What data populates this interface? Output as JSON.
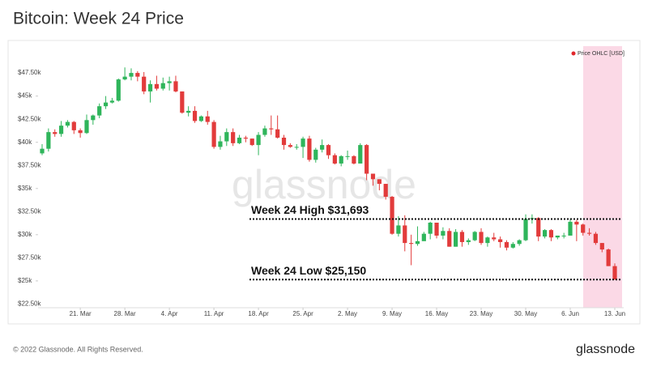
{
  "chart_data": {
    "type": "candlestick",
    "title": "Bitcoin: Week 24 Price",
    "series_name": "Price OHLC [USD]",
    "watermark": "glassnode",
    "footer": "© 2022 Glassnode. All Rights Reserved.",
    "brand": "glassnode",
    "up_color": "#2fb55b",
    "down_color": "#e23b3b",
    "legend_color": "#e0262b",
    "categories": [
      null,
      null,
      null,
      null,
      null,
      null,
      "21. Mar",
      null,
      null,
      null,
      null,
      null,
      null,
      "28. Mar",
      null,
      null,
      null,
      null,
      null,
      null,
      "4. Apr",
      null,
      null,
      null,
      null,
      null,
      null,
      "11. Apr",
      null,
      null,
      null,
      null,
      null,
      null,
      "18. Apr",
      null,
      null,
      null,
      null,
      null,
      null,
      "25. Apr",
      null,
      null,
      null,
      null,
      null,
      null,
      "2. May",
      null,
      null,
      null,
      null,
      null,
      null,
      "9. May",
      null,
      null,
      null,
      null,
      null,
      null,
      "16. May",
      null,
      null,
      null,
      null,
      null,
      null,
      "23. May",
      null,
      null,
      null,
      null,
      null,
      null,
      "30. May",
      null,
      null,
      null,
      null,
      null,
      null,
      "6. Jun",
      null,
      null,
      null,
      null,
      null,
      null,
      "13. Jun"
    ],
    "open": [
      38800,
      39300,
      41100,
      40900,
      41800,
      42200,
      41300,
      41000,
      42400,
      42900,
      43900,
      44300,
      44500,
      46800,
      47100,
      47500,
      47100,
      45500,
      46300,
      45800,
      46400,
      46600,
      45500,
      43200,
      43400,
      42300,
      42800,
      42200,
      39500,
      40100,
      41100,
      39900,
      40500,
      40400,
      39700,
      40800,
      41500,
      41400,
      40500,
      39700,
      39500,
      39500,
      40400,
      38100,
      39200,
      39700,
      38600,
      37700,
      38500,
      38500,
      37700,
      39700,
      36600,
      36000,
      35500,
      34100,
      30100,
      31000,
      29100,
      29000,
      29300,
      30100,
      31300,
      29900,
      30400,
      28700,
      30300,
      29200,
      29400,
      30300,
      29100,
      29700,
      29500,
      29200,
      28600,
      29000,
      29400,
      31700,
      31800,
      29800,
      30500,
      29700,
      29900,
      29900,
      31400,
      31100,
      30200,
      30100,
      29100,
      28400,
      26600
    ],
    "high": [
      39800,
      41500,
      41400,
      42300,
      42400,
      42300,
      41500,
      43000,
      43000,
      44200,
      45000,
      44800,
      46900,
      48100,
      48000,
      47700,
      47600,
      46700,
      47200,
      47000,
      47100,
      47200,
      45500,
      43900,
      43900,
      42900,
      43400,
      42400,
      40700,
      41500,
      41500,
      40800,
      40700,
      40400,
      41100,
      41800,
      42900,
      42900,
      40800,
      39900,
      39800,
      40600,
      40700,
      39400,
      40300,
      39800,
      38800,
      38600,
      39100,
      38600,
      39900,
      39800,
      36600,
      36000,
      35500,
      34200,
      32000,
      32100,
      30000,
      30900,
      30300,
      31400,
      31300,
      30800,
      30700,
      30600,
      30500,
      29600,
      30400,
      30700,
      29800,
      30200,
      29800,
      29400,
      29200,
      29500,
      32200,
      32200,
      31900,
      30600,
      30600,
      29900,
      30200,
      31700,
      31600,
      31200,
      30700,
      30300,
      29100,
      28500,
      26900
    ],
    "low": [
      38600,
      39000,
      40600,
      40600,
      41600,
      40900,
      40500,
      40900,
      41900,
      42600,
      43600,
      44200,
      44400,
      46700,
      46700,
      46600,
      45200,
      44300,
      45600,
      45600,
      45600,
      45400,
      43100,
      42800,
      42100,
      42200,
      41900,
      39300,
      39200,
      39600,
      39600,
      39800,
      40000,
      39600,
      38600,
      40600,
      40800,
      40400,
      39200,
      39400,
      39200,
      38300,
      37900,
      37800,
      38900,
      38200,
      37600,
      37400,
      38100,
      37600,
      37700,
      35900,
      35300,
      34800,
      33800,
      30000,
      29800,
      28200,
      26700,
      28800,
      29400,
      29500,
      29600,
      29500,
      28700,
      28700,
      28700,
      28900,
      29300,
      28900,
      28700,
      29300,
      28600,
      28300,
      28500,
      28800,
      29300,
      31200,
      29300,
      29600,
      29300,
      29500,
      29600,
      29900,
      29300,
      29900,
      29900,
      28900,
      28100,
      26600,
      25150
    ],
    "close": [
      39300,
      41100,
      40900,
      41800,
      42200,
      41300,
      41000,
      42400,
      42900,
      43900,
      44300,
      44500,
      46800,
      47100,
      47500,
      47100,
      45500,
      46300,
      45800,
      46400,
      46600,
      45500,
      43200,
      43400,
      42300,
      42800,
      42200,
      39500,
      40100,
      41100,
      39900,
      40500,
      40400,
      39700,
      40800,
      41500,
      41400,
      40500,
      39700,
      39500,
      39500,
      40400,
      38100,
      39200,
      39700,
      38600,
      37700,
      38500,
      38500,
      37700,
      39700,
      36600,
      36000,
      35500,
      34100,
      30100,
      31000,
      29100,
      29000,
      29300,
      30100,
      31300,
      29900,
      30400,
      28700,
      30300,
      29200,
      29400,
      30300,
      29100,
      29700,
      29500,
      29200,
      28600,
      29000,
      29400,
      31700,
      31800,
      29800,
      30500,
      29700,
      29900,
      29900,
      31400,
      31100,
      30200,
      30100,
      29100,
      28400,
      26600,
      25150
    ],
    "ylim": [
      22100,
      50400
    ],
    "yticks": [
      {
        "value": 22500,
        "label": "$22.50k"
      },
      {
        "value": 25000,
        "label": "$25k"
      },
      {
        "value": 27500,
        "label": "$27.50k"
      },
      {
        "value": 30000,
        "label": "$30k"
      },
      {
        "value": 32500,
        "label": "$32.50k"
      },
      {
        "value": 35000,
        "label": "$35k"
      },
      {
        "value": 37500,
        "label": "$37.50k"
      },
      {
        "value": 40000,
        "label": "$40k"
      },
      {
        "value": 42500,
        "label": "$42.50k"
      },
      {
        "value": 45000,
        "label": "$45k"
      },
      {
        "value": 47500,
        "label": "$47.50k"
      }
    ],
    "annotations": [
      {
        "text": "Week 24 High $31,693",
        "value": 31693
      },
      {
        "text": "Week 24 Low $25,150",
        "value": 25150
      }
    ]
  }
}
